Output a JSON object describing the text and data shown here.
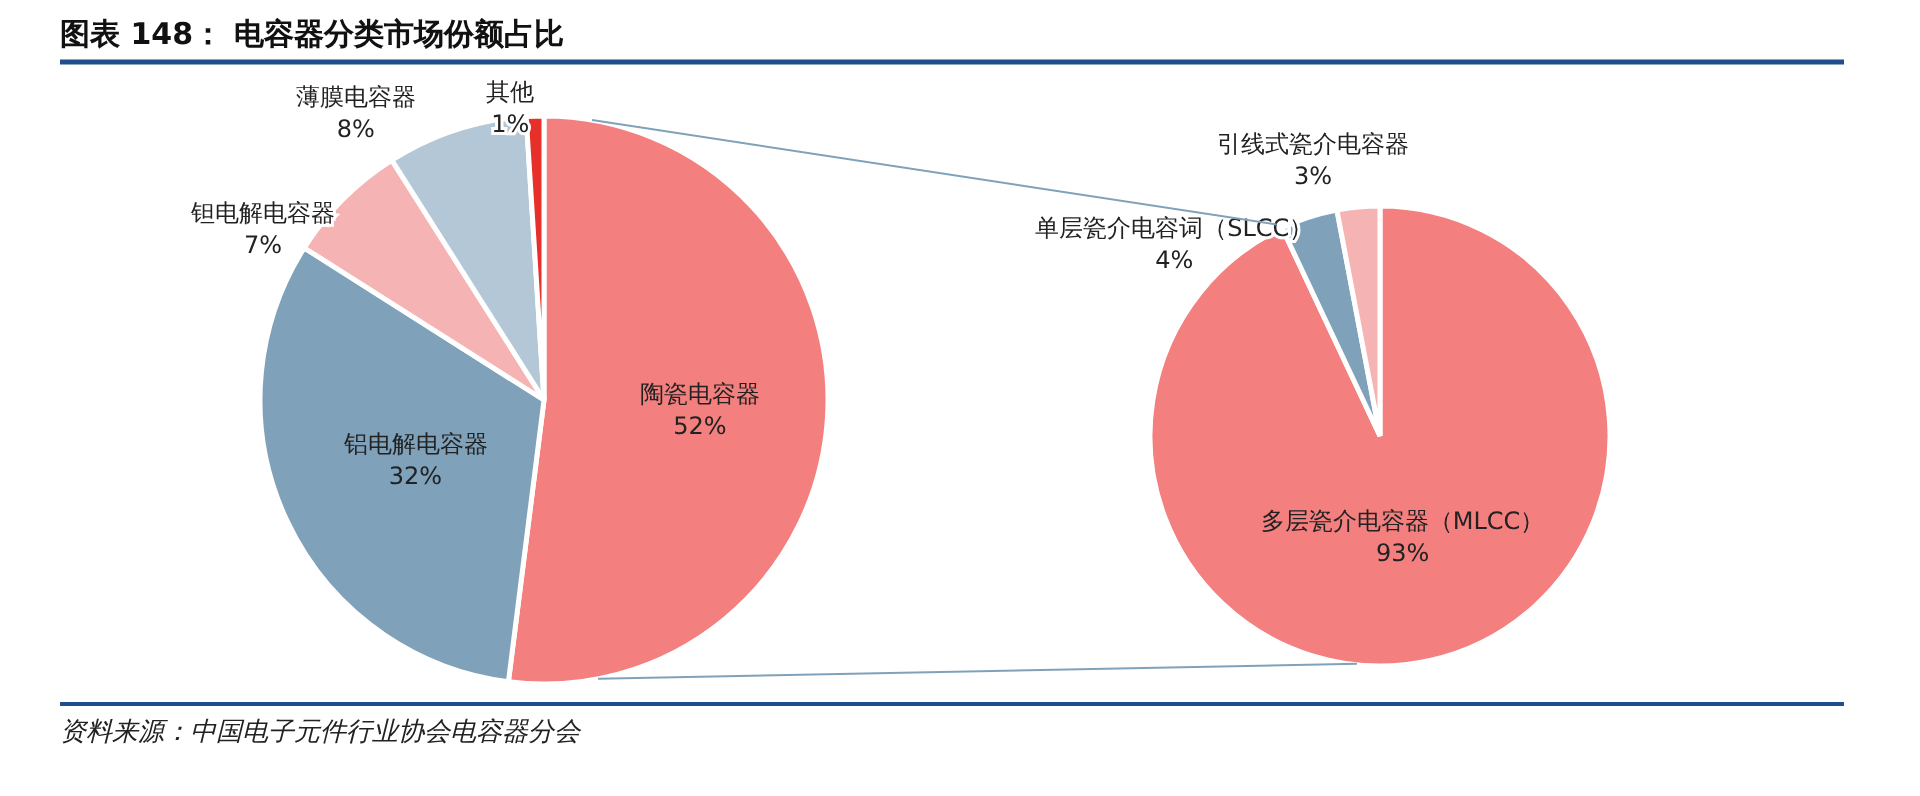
{
  "chart_data": [
    {
      "type": "pie",
      "title": "图表 148：  电容器分类市场份额占比",
      "categories": [
        "陶瓷电容器",
        "铝电解电容器",
        "钽电解电容器",
        "薄膜电容器",
        "其他"
      ],
      "values": [
        52,
        32,
        7,
        8,
        1
      ],
      "value_labels": [
        "52%",
        "32%",
        "7%",
        "8%",
        "1%"
      ],
      "colors": [
        "#f47f7f",
        "#7fa2ba",
        "#f6b3b3",
        "#b4c7d6",
        "#e8302a"
      ],
      "annotations": [
        "资料来源：中国电子元件行业协会电容器分会"
      ]
    },
    {
      "type": "pie",
      "categories": [
        "多层瓷介电容器（MLCC）",
        "单层瓷介电容词（SLCC）",
        "引线式瓷介电容器"
      ],
      "values": [
        93,
        4,
        3
      ],
      "value_labels": [
        "93%",
        "4%",
        "3%"
      ],
      "colors": [
        "#f47f7f",
        "#7fa2ba",
        "#f6b3b3"
      ]
    }
  ]
}
